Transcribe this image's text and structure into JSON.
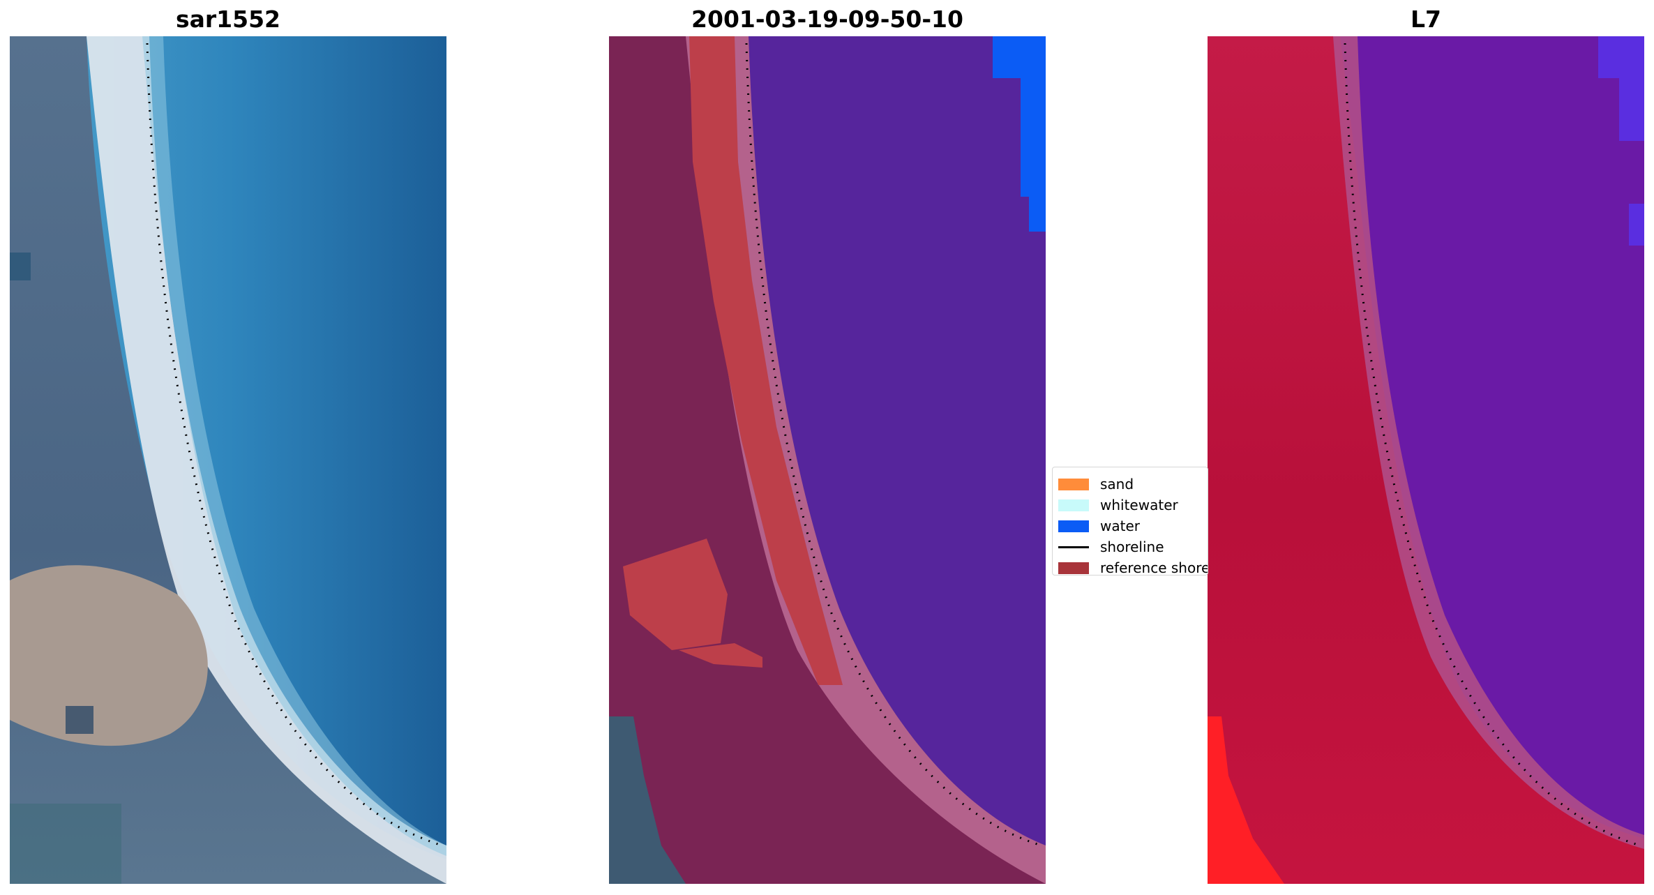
{
  "panels": [
    {
      "title": "sar1552"
    },
    {
      "title": "2001-03-19-09-50-10"
    },
    {
      "title": "L7"
    }
  ],
  "legend": {
    "items": [
      {
        "label": "sand",
        "kind": "patch",
        "color": "#ff8c3a"
      },
      {
        "label": "whitewater",
        "kind": "patch",
        "color": "#c8fafa"
      },
      {
        "label": "water",
        "kind": "patch",
        "color": "#0b5cf5"
      },
      {
        "label": "shoreline",
        "kind": "line",
        "color": "#000000"
      },
      {
        "label": "reference shore",
        "kind": "patch",
        "color": "#a8343a"
      }
    ]
  },
  "colors": {
    "sea_blue": "#2a79ad",
    "surf_white": "#dfe6ee",
    "land_grey": "#4a6584",
    "sand_beige": "#a89a91",
    "water_class_purple": "#56259c",
    "beach_class_red": "#bd3f4a",
    "land_magenta": "#7a2454",
    "l7_land_red": "#c0153d",
    "l7_water_purple": "#6a1aa6"
  }
}
